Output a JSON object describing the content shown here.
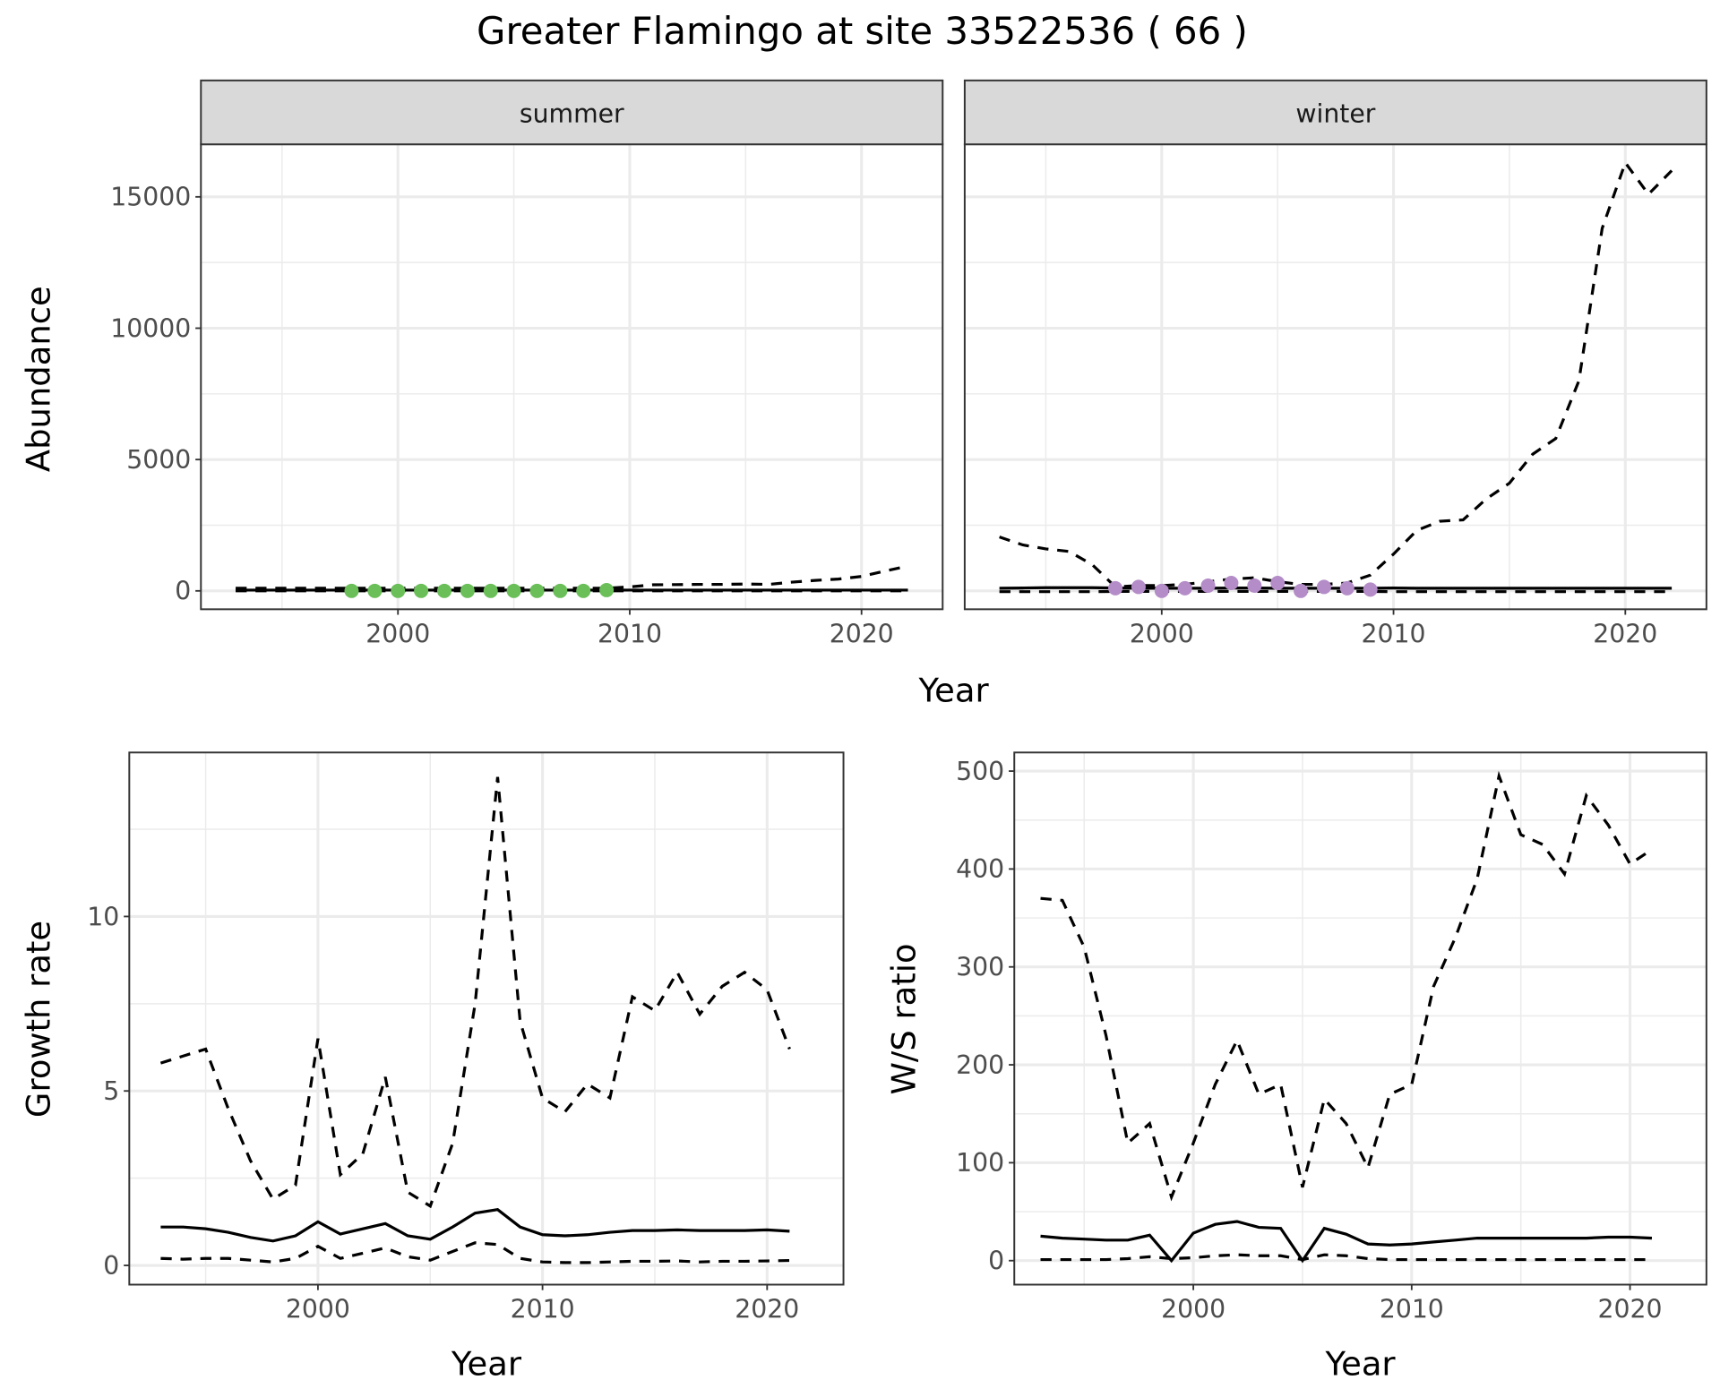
{
  "title": "Greater Flamingo at site 33522536 ( 66 )",
  "colors": {
    "summer": "#6abf59",
    "winter": "#b48cc8",
    "line": "#000000",
    "grid": "#ebebeb",
    "strip": "#d9d9d9"
  },
  "chart_data": [
    {
      "type": "line",
      "facet": "summer",
      "strip_label": "summer",
      "xlabel": "Year",
      "ylabel": "Abundance",
      "xlim": [
        1991.5,
        2023.5
      ],
      "ylim": [
        -700,
        17000
      ],
      "xticks": [
        "2000",
        "2010",
        "2020"
      ],
      "yticks": [
        "0",
        "5000",
        "10000",
        "15000"
      ],
      "x": [
        1993,
        1994,
        1995,
        1996,
        1997,
        1998,
        1999,
        2000,
        2001,
        2002,
        2003,
        2004,
        2005,
        2006,
        2007,
        2008,
        2009,
        2010,
        2011,
        2012,
        2013,
        2014,
        2015,
        2016,
        2017,
        2018,
        2019,
        2020,
        2021,
        2022
      ],
      "series": [
        {
          "name": "upper",
          "style": "dashed",
          "values": [
            100,
            100,
            100,
            100,
            100,
            100,
            100,
            100,
            100,
            100,
            100,
            100,
            100,
            100,
            100,
            100,
            100,
            150,
            230,
            240,
            250,
            250,
            260,
            250,
            330,
            400,
            450,
            550,
            750,
            950
          ]
        },
        {
          "name": "fit",
          "style": "solid",
          "values": [
            30,
            30,
            30,
            30,
            30,
            30,
            30,
            30,
            30,
            30,
            30,
            30,
            30,
            30,
            30,
            30,
            30,
            30,
            30,
            30,
            30,
            30,
            30,
            30,
            30,
            30,
            30,
            30,
            30,
            30
          ]
        },
        {
          "name": "lower",
          "style": "dashed",
          "values": [
            0,
            0,
            0,
            0,
            0,
            0,
            0,
            0,
            0,
            0,
            0,
            0,
            0,
            0,
            0,
            0,
            0,
            0,
            0,
            0,
            0,
            0,
            0,
            0,
            0,
            0,
            0,
            0,
            0,
            0
          ]
        }
      ],
      "points": {
        "x": [
          1998,
          1999,
          2000,
          2001,
          2002,
          2003,
          2004,
          2005,
          2006,
          2007,
          2008,
          2009
        ],
        "y": [
          0,
          0,
          0,
          0,
          0,
          0,
          0,
          0,
          0,
          0,
          0,
          30
        ]
      }
    },
    {
      "type": "line",
      "facet": "winter",
      "strip_label": "winter",
      "xlabel": "Year",
      "ylabel": "Abundance",
      "xlim": [
        1991.5,
        2023.5
      ],
      "ylim": [
        -700,
        17000
      ],
      "xticks": [
        "2000",
        "2010",
        "2020"
      ],
      "yticks": [
        "0",
        "5000",
        "10000",
        "15000"
      ],
      "x": [
        1993,
        1994,
        1995,
        1996,
        1997,
        1998,
        1999,
        2000,
        2001,
        2002,
        2003,
        2004,
        2005,
        2006,
        2007,
        2008,
        2009,
        2010,
        2011,
        2012,
        2013,
        2014,
        2015,
        2016,
        2017,
        2018,
        2019,
        2020,
        2021,
        2022
      ],
      "series": [
        {
          "name": "upper",
          "style": "dashed",
          "values": [
            2050,
            1750,
            1600,
            1500,
            1000,
            150,
            200,
            200,
            250,
            350,
            450,
            500,
            350,
            250,
            250,
            300,
            600,
            1400,
            2300,
            2650,
            2700,
            3500,
            4100,
            5200,
            5800,
            8000,
            13800,
            16300,
            15100,
            16000
          ]
        },
        {
          "name": "fit",
          "style": "solid",
          "values": [
            100,
            110,
            120,
            120,
            120,
            110,
            100,
            100,
            100,
            100,
            110,
            110,
            100,
            100,
            100,
            100,
            100,
            110,
            100,
            100,
            100,
            100,
            100,
            100,
            100,
            100,
            100,
            100,
            100,
            100
          ]
        },
        {
          "name": "lower",
          "style": "dashed",
          "values": [
            -30,
            -30,
            -30,
            -30,
            -30,
            -20,
            -20,
            -20,
            -20,
            -20,
            -20,
            -20,
            -20,
            -20,
            -20,
            -20,
            -20,
            -30,
            -30,
            -30,
            -30,
            -30,
            -30,
            -30,
            -30,
            -30,
            -30,
            -30,
            -30,
            -30
          ]
        }
      ],
      "points": {
        "x": [
          1998,
          1999,
          2000,
          2001,
          2002,
          2003,
          2004,
          2005,
          2006,
          2007,
          2008,
          2009
        ],
        "y": [
          100,
          150,
          0,
          100,
          200,
          300,
          200,
          300,
          0,
          150,
          100,
          50
        ]
      }
    },
    {
      "type": "line",
      "xlabel": "Year",
      "ylabel": "Growth rate",
      "xlim": [
        1991.6,
        2023.4
      ],
      "ylim": [
        -0.55,
        14.7
      ],
      "xticks": [
        "2000",
        "2010",
        "2020"
      ],
      "yticks": [
        "0",
        "5",
        "10"
      ],
      "x": [
        1993,
        1994,
        1995,
        1996,
        1997,
        1998,
        1999,
        2000,
        2001,
        2002,
        2003,
        2004,
        2005,
        2006,
        2007,
        2008,
        2009,
        2010,
        2011,
        2012,
        2013,
        2014,
        2015,
        2016,
        2017,
        2018,
        2019,
        2020,
        2021
      ],
      "series": [
        {
          "name": "upper",
          "style": "dashed",
          "values": [
            5.8,
            6.0,
            6.2,
            4.5,
            3.0,
            1.9,
            2.3,
            6.5,
            2.6,
            3.2,
            5.4,
            2.1,
            1.7,
            3.5,
            7.5,
            14.0,
            7.0,
            4.8,
            4.4,
            5.2,
            4.8,
            7.7,
            7.3,
            8.4,
            7.2,
            8.0,
            8.4,
            7.9,
            6.2
          ]
        },
        {
          "name": "fit",
          "style": "solid",
          "values": [
            1.1,
            1.1,
            1.05,
            0.95,
            0.8,
            0.7,
            0.85,
            1.25,
            0.9,
            1.05,
            1.2,
            0.85,
            0.75,
            1.1,
            1.5,
            1.6,
            1.1,
            0.88,
            0.85,
            0.88,
            0.95,
            1.0,
            1.0,
            1.02,
            1.0,
            1.0,
            1.0,
            1.02,
            0.98
          ]
        },
        {
          "name": "lower",
          "style": "dashed",
          "values": [
            0.2,
            0.18,
            0.2,
            0.2,
            0.15,
            0.1,
            0.2,
            0.55,
            0.2,
            0.35,
            0.5,
            0.25,
            0.15,
            0.4,
            0.65,
            0.6,
            0.2,
            0.1,
            0.08,
            0.08,
            0.1,
            0.12,
            0.12,
            0.13,
            0.1,
            0.12,
            0.12,
            0.13,
            0.14
          ]
        }
      ]
    },
    {
      "type": "line",
      "xlabel": "Year",
      "ylabel": "W/S ratio",
      "xlim": [
        1991.8,
        2023.5
      ],
      "ylim": [
        -24.5,
        519
      ],
      "xticks": [
        "2000",
        "2010",
        "2020"
      ],
      "yticks": [
        "0",
        "100",
        "200",
        "300",
        "400",
        "500"
      ],
      "x": [
        1993,
        1994,
        1995,
        1996,
        1997,
        1998,
        1999,
        2000,
        2001,
        2002,
        2003,
        2004,
        2005,
        2006,
        2007,
        2008,
        2009,
        2010,
        2011,
        2012,
        2013,
        2014,
        2015,
        2016,
        2017,
        2018,
        2019,
        2020,
        2021
      ],
      "series": [
        {
          "name": "upper",
          "style": "dashed",
          "values": [
            370,
            368,
            320,
            230,
            120,
            140,
            65,
            120,
            180,
            225,
            170,
            180,
            75,
            165,
            140,
            95,
            170,
            180,
            280,
            330,
            390,
            495,
            435,
            425,
            395,
            475,
            445,
            405,
            420
          ]
        },
        {
          "name": "fit",
          "style": "solid",
          "values": [
            25,
            23,
            22,
            21,
            21,
            26,
            0,
            28,
            37,
            40,
            34,
            33,
            0,
            33,
            27,
            17,
            16,
            17,
            19,
            21,
            23,
            23,
            23,
            23,
            23,
            23,
            24,
            24,
            23
          ]
        },
        {
          "name": "lower",
          "style": "dashed",
          "values": [
            1,
            1,
            1,
            1,
            2,
            4,
            2,
            3,
            5,
            6,
            5,
            5,
            1,
            6,
            5,
            2,
            1,
            1,
            1,
            1,
            1,
            1,
            1,
            1,
            1,
            1,
            1,
            1,
            1
          ]
        }
      ]
    }
  ]
}
